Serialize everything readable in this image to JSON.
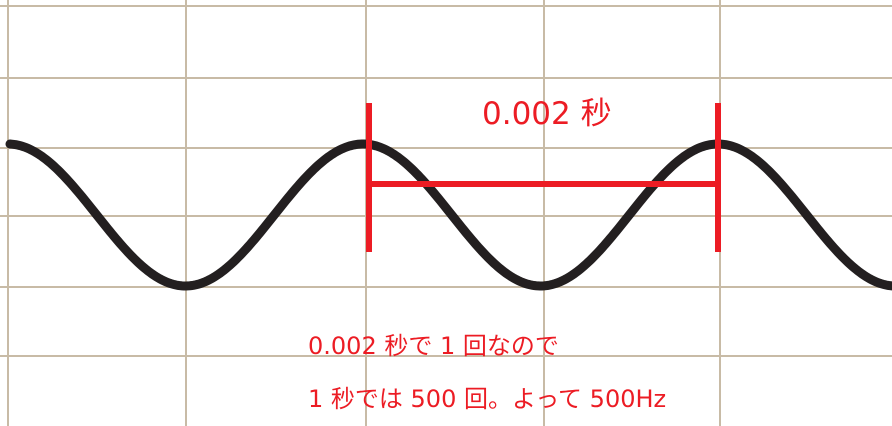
{
  "colors": {
    "grid": "#c8bba6",
    "wave": "#231f20",
    "accent": "#ec1c24"
  },
  "labels": {
    "period": "0.002 秒",
    "explanation_line1": "0.002 秒で 1 回なので",
    "explanation_line2": "1 秒では 500 回。よって 500Hz"
  }
}
